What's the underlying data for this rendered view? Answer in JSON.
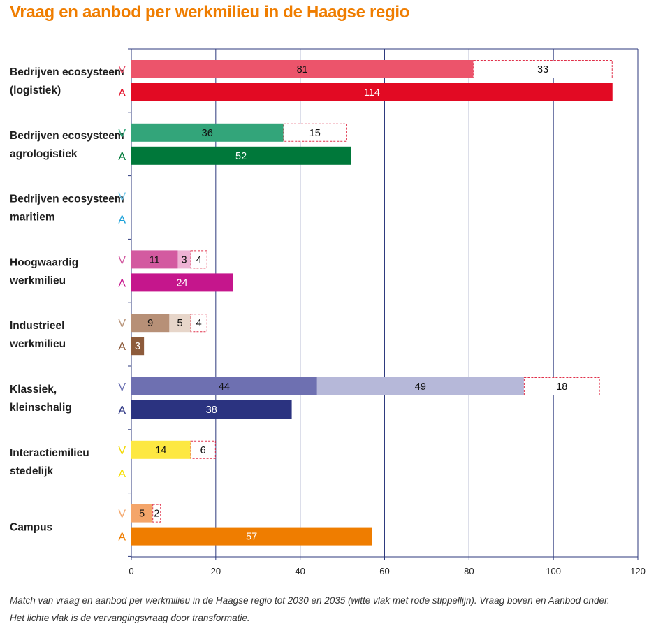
{
  "title": "Vraag en aanbod per werkmilieu in de Haagse regio",
  "caption": [
    "Match van vraag en aanbod per werkmilieu in de Haagse regio tot 2030 en 2035 (witte vlak met rode stippellijn). Vraag boven en Aanbod onder.",
    "Het lichte vlak is de vervangingsvraag door transformatie."
  ],
  "colors": {
    "title": "#ef7d00",
    "grid": "#2e3a7e",
    "future_border": "#e0304a"
  },
  "chart_data": {
    "type": "bar",
    "orientation": "horizontal",
    "stacked": true,
    "xlim": [
      0,
      120
    ],
    "x_ticks": [
      0,
      20,
      40,
      60,
      80,
      100,
      120
    ],
    "grid": true,
    "categories": [
      {
        "label": [
          "Bedrijven ecosysteem",
          "(logistiek)"
        ],
        "rows": [
          {
            "letter": "V",
            "letter_color": "#e8506a",
            "segments": [
              {
                "value": 81,
                "color": "#ec546b",
                "label": "81",
                "style": "solid"
              },
              {
                "value": 33,
                "color": "#ffffff",
                "label": "33",
                "style": "dashed"
              }
            ]
          },
          {
            "letter": "A",
            "letter_color": "#e30b24",
            "segments": [
              {
                "value": 114,
                "color": "#e20a23",
                "label": "114",
                "style": "solid"
              }
            ]
          }
        ]
      },
      {
        "label": [
          "Bedrijven ecosysteem",
          "agrologistiek"
        ],
        "rows": [
          {
            "letter": "V",
            "letter_color": "#2fa577",
            "segments": [
              {
                "value": 36,
                "color": "#33a57a",
                "label": "36",
                "style": "solid"
              },
              {
                "value": 15,
                "color": "#ffffff",
                "label": "15",
                "style": "dashed"
              }
            ]
          },
          {
            "letter": "A",
            "letter_color": "#007a3a",
            "segments": [
              {
                "value": 52,
                "color": "#00783a",
                "label": "52",
                "style": "solid"
              }
            ]
          }
        ]
      },
      {
        "label": [
          "Bedrijven ecosysteem",
          "maritiem"
        ],
        "rows": [
          {
            "letter": "V",
            "letter_color": "#6fc7ea",
            "segments": []
          },
          {
            "letter": "A",
            "letter_color": "#1aa0d8",
            "segments": []
          }
        ]
      },
      {
        "label": [
          "Hoogwaardig",
          "werkmilieu"
        ],
        "rows": [
          {
            "letter": "V",
            "letter_color": "#d2579f",
            "segments": [
              {
                "value": 11,
                "color": "#d35aa0",
                "label": "11",
                "style": "solid"
              },
              {
                "value": 3,
                "color": "#eeb2d4",
                "label": "3",
                "style": "solid"
              },
              {
                "value": 4,
                "color": "#ffffff",
                "label": "4",
                "style": "dashed"
              }
            ]
          },
          {
            "letter": "A",
            "letter_color": "#c6168d",
            "segments": [
              {
                "value": 24,
                "color": "#c5168c",
                "label": "24",
                "style": "solid"
              }
            ]
          }
        ]
      },
      {
        "label": [
          "Industrieel",
          "werkmilieu"
        ],
        "rows": [
          {
            "letter": "V",
            "letter_color": "#b89378",
            "segments": [
              {
                "value": 9,
                "color": "#b79077",
                "label": "9",
                "style": "solid"
              },
              {
                "value": 5,
                "color": "#e7d6ca",
                "label": "5",
                "style": "solid"
              },
              {
                "value": 4,
                "color": "#ffffff",
                "label": "4",
                "style": "dashed"
              }
            ]
          },
          {
            "letter": "A",
            "letter_color": "#8c5a3a",
            "segments": [
              {
                "value": 3,
                "color": "#8d5b3b",
                "label": "3",
                "style": "solid"
              }
            ]
          }
        ]
      },
      {
        "label": [
          "Klassiek,",
          "kleinschalig"
        ],
        "rows": [
          {
            "letter": "V",
            "letter_color": "#6b70b2",
            "segments": [
              {
                "value": 44,
                "color": "#6e70b1",
                "label": "44",
                "style": "solid"
              },
              {
                "value": 49,
                "color": "#b6b8d9",
                "label": "49",
                "style": "solid"
              },
              {
                "value": 18,
                "color": "#ffffff",
                "label": "18",
                "style": "dashed"
              }
            ]
          },
          {
            "letter": "A",
            "letter_color": "#2b3382",
            "segments": [
              {
                "value": 38,
                "color": "#2b3380",
                "label": "38",
                "style": "solid"
              }
            ]
          }
        ]
      },
      {
        "label": [
          "Interactiemilieu",
          "stedelijk"
        ],
        "rows": [
          {
            "letter": "V",
            "letter_color": "#f2d800",
            "segments": [
              {
                "value": 14,
                "color": "#fde842",
                "label": "14",
                "style": "solid"
              },
              {
                "value": 6,
                "color": "#ffffff",
                "label": "6",
                "style": "dashed"
              }
            ]
          },
          {
            "letter": "A",
            "letter_color": "#f6df00",
            "segments": []
          }
        ]
      },
      {
        "label": [
          "Campus"
        ],
        "rows": [
          {
            "letter": "V",
            "letter_color": "#f4a66a",
            "segments": [
              {
                "value": 5,
                "color": "#f4a56a",
                "label": "5",
                "style": "solid"
              },
              {
                "value": 2,
                "color": "#ffffff",
                "label": "2",
                "style": "dashed"
              }
            ]
          },
          {
            "letter": "A",
            "letter_color": "#ef7d00",
            "segments": [
              {
                "value": 57,
                "color": "#ef7d00",
                "label": "57",
                "style": "solid"
              }
            ]
          }
        ]
      }
    ]
  }
}
